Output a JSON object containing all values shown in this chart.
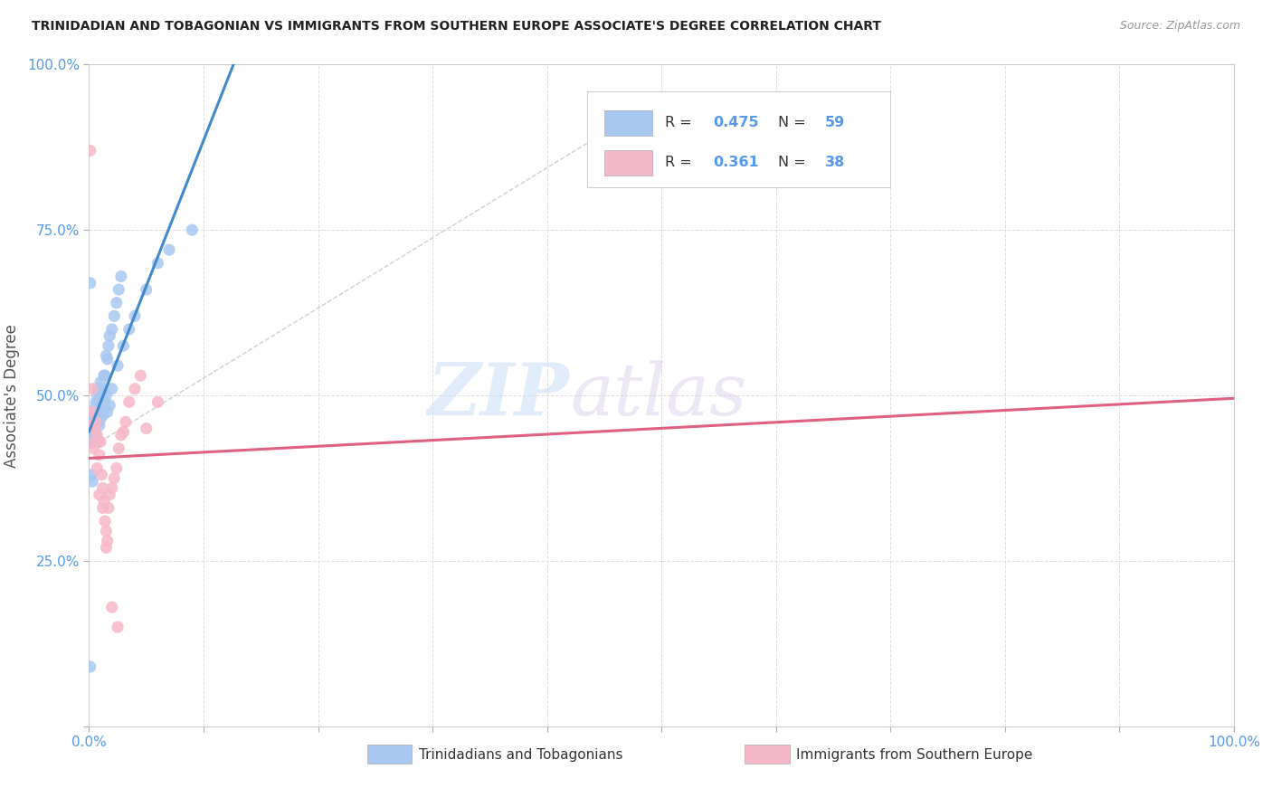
{
  "title": "TRINIDADIAN AND TOBAGONIAN VS IMMIGRANTS FROM SOUTHERN EUROPE ASSOCIATE'S DEGREE CORRELATION CHART",
  "source": "Source: ZipAtlas.com",
  "ylabel": "Associate's Degree",
  "watermark_zip": "ZIP",
  "watermark_atlas": "atlas",
  "series1_name": "Trinidadians and Tobagonians",
  "series2_name": "Immigrants from Southern Europe",
  "series1_R": 0.475,
  "series1_N": 59,
  "series2_R": 0.361,
  "series2_N": 38,
  "series1_color": "#a8c8f0",
  "series2_color": "#f5b8c8",
  "series1_line_color": "#4488cc",
  "series2_line_color": "#e06080",
  "bg_color": "#ffffff",
  "grid_color": "#dddddd",
  "title_color": "#222222",
  "tick_color": "#5599ee",
  "xlim": [
    0.0,
    1.0
  ],
  "ylim": [
    0.0,
    1.0
  ],
  "xticks": [
    0.0,
    0.1,
    0.2,
    0.3,
    0.4,
    0.5,
    0.6,
    0.7,
    0.8,
    0.9,
    1.0
  ],
  "yticks": [
    0.0,
    0.25,
    0.5,
    0.75,
    1.0
  ],
  "series1_x": [
    0.002,
    0.003,
    0.003,
    0.004,
    0.004,
    0.005,
    0.005,
    0.006,
    0.006,
    0.007,
    0.007,
    0.008,
    0.008,
    0.009,
    0.009,
    0.01,
    0.01,
    0.011,
    0.012,
    0.013,
    0.014,
    0.015,
    0.016,
    0.017,
    0.018,
    0.02,
    0.022,
    0.024,
    0.026,
    0.028,
    0.001,
    0.002,
    0.003,
    0.004,
    0.005,
    0.006,
    0.007,
    0.008,
    0.009,
    0.01,
    0.011,
    0.012,
    0.013,
    0.015,
    0.016,
    0.018,
    0.02,
    0.025,
    0.03,
    0.035,
    0.04,
    0.05,
    0.06,
    0.07,
    0.09,
    0.001,
    0.002,
    0.003,
    0.001
  ],
  "series1_y": [
    0.455,
    0.445,
    0.465,
    0.44,
    0.47,
    0.46,
    0.48,
    0.47,
    0.49,
    0.5,
    0.475,
    0.49,
    0.51,
    0.475,
    0.505,
    0.48,
    0.52,
    0.51,
    0.5,
    0.53,
    0.53,
    0.56,
    0.555,
    0.575,
    0.59,
    0.6,
    0.62,
    0.64,
    0.66,
    0.68,
    0.45,
    0.435,
    0.44,
    0.43,
    0.45,
    0.445,
    0.475,
    0.46,
    0.455,
    0.465,
    0.48,
    0.47,
    0.49,
    0.5,
    0.475,
    0.485,
    0.51,
    0.545,
    0.575,
    0.6,
    0.62,
    0.66,
    0.7,
    0.72,
    0.75,
    0.67,
    0.38,
    0.37,
    0.09
  ],
  "series2_x": [
    0.001,
    0.002,
    0.003,
    0.004,
    0.005,
    0.006,
    0.007,
    0.008,
    0.009,
    0.01,
    0.011,
    0.012,
    0.013,
    0.014,
    0.015,
    0.016,
    0.017,
    0.018,
    0.02,
    0.022,
    0.024,
    0.026,
    0.028,
    0.03,
    0.032,
    0.035,
    0.04,
    0.045,
    0.05,
    0.06,
    0.003,
    0.005,
    0.007,
    0.009,
    0.012,
    0.015,
    0.02,
    0.025
  ],
  "series2_y": [
    0.87,
    0.455,
    0.475,
    0.42,
    0.45,
    0.46,
    0.44,
    0.43,
    0.41,
    0.43,
    0.38,
    0.36,
    0.34,
    0.31,
    0.295,
    0.28,
    0.33,
    0.35,
    0.36,
    0.375,
    0.39,
    0.42,
    0.44,
    0.445,
    0.46,
    0.49,
    0.51,
    0.53,
    0.45,
    0.49,
    0.51,
    0.43,
    0.39,
    0.35,
    0.33,
    0.27,
    0.18,
    0.15
  ],
  "ref_line_x": [
    0.0,
    0.5
  ],
  "ref_line_y": [
    0.42,
    0.95
  ]
}
